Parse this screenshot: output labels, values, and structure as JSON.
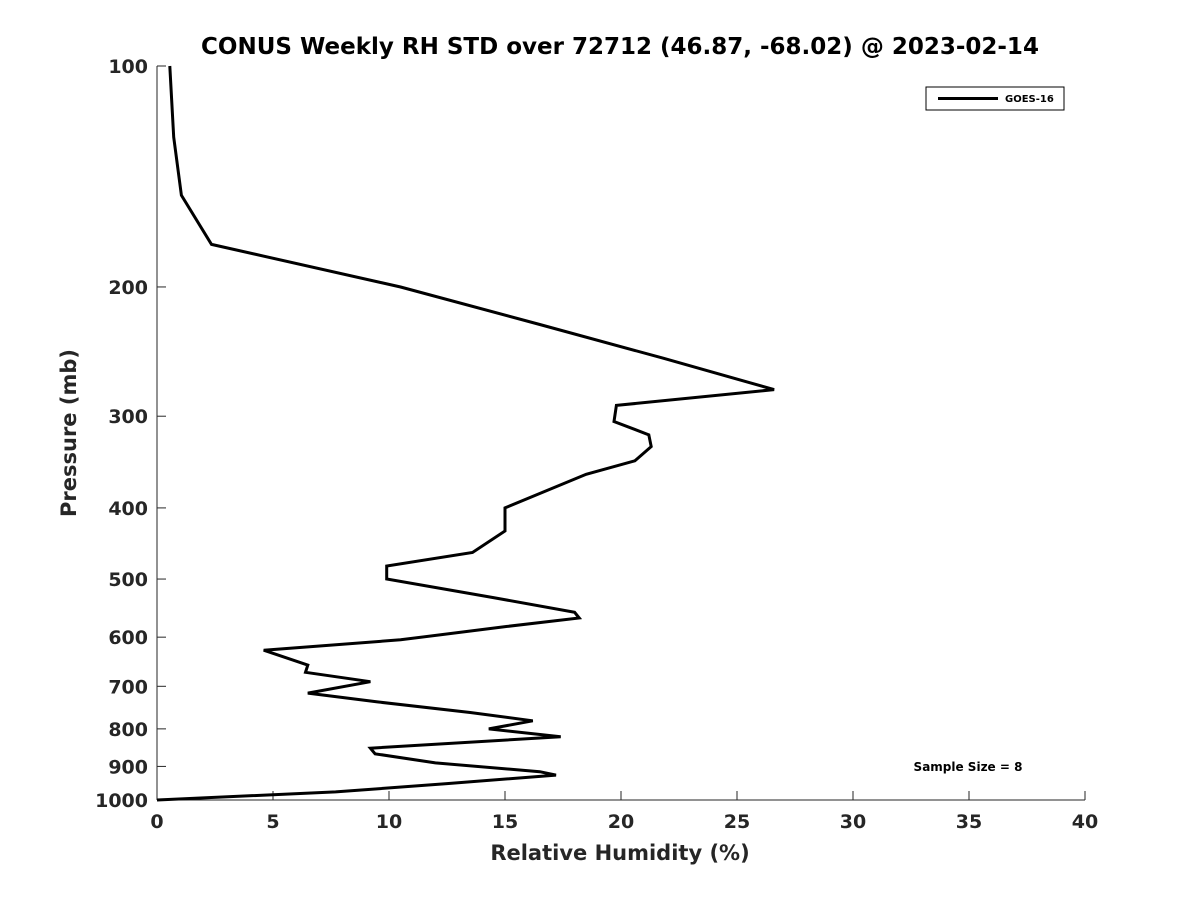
{
  "chart_data": {
    "type": "line",
    "title": "CONUS Weekly RH STD over 72712 (46.87, -68.02) @ 2023-02-14",
    "xlabel": "Relative Humidity (%)",
    "ylabel": "Pressure (mb)",
    "xlim": [
      0,
      40
    ],
    "ylim": [
      100,
      1000
    ],
    "y_scale": "log",
    "y_reversed": true,
    "x_ticks": [
      0,
      5,
      10,
      15,
      20,
      25,
      30,
      35,
      40
    ],
    "y_ticks": [
      100,
      200,
      300,
      400,
      500,
      600,
      700,
      800,
      900,
      1000
    ],
    "grid": false,
    "legend_position": "top-right",
    "annotation": "Sample Size = 8",
    "series": [
      {
        "name": "GOES-16",
        "color": "#000000",
        "points": [
          [
            0.55,
            100
          ],
          [
            0.72,
            125
          ],
          [
            1.05,
            150
          ],
          [
            2.35,
            175
          ],
          [
            10.5,
            200
          ],
          [
            16.5,
            225
          ],
          [
            21.8,
            250
          ],
          [
            26.6,
            276
          ],
          [
            19.8,
            290
          ],
          [
            19.7,
            305
          ],
          [
            21.2,
            318
          ],
          [
            21.3,
            330
          ],
          [
            20.6,
            345
          ],
          [
            18.5,
            360
          ],
          [
            15.0,
            400
          ],
          [
            15.0,
            430
          ],
          [
            13.6,
            460
          ],
          [
            9.9,
            480
          ],
          [
            9.9,
            500
          ],
          [
            14.5,
            530
          ],
          [
            18.0,
            555
          ],
          [
            18.2,
            565
          ],
          [
            15.1,
            580
          ],
          [
            10.5,
            605
          ],
          [
            4.6,
            625
          ],
          [
            6.5,
            655
          ],
          [
            6.4,
            670
          ],
          [
            9.2,
            690
          ],
          [
            6.5,
            715
          ],
          [
            9.5,
            735
          ],
          [
            13.5,
            760
          ],
          [
            16.2,
            780
          ],
          [
            14.3,
            800
          ],
          [
            17.4,
            820
          ],
          [
            9.2,
            850
          ],
          [
            9.4,
            865
          ],
          [
            12.0,
            890
          ],
          [
            16.5,
            915
          ],
          [
            17.2,
            925
          ],
          [
            12.5,
            950
          ],
          [
            7.7,
            975
          ],
          [
            0.0,
            1000
          ]
        ]
      }
    ]
  }
}
